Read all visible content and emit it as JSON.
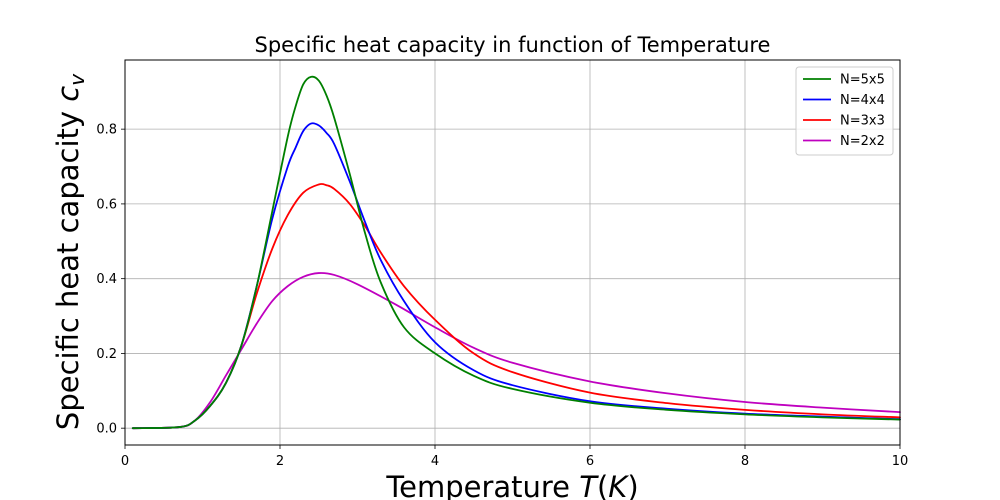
{
  "chart_data": {
    "type": "line",
    "title": "Specific heat capacity in function of Temperature",
    "xlabel": "Temperature T(K)",
    "ylabel": "Specific heat capacity c_v",
    "xlim": [
      0,
      10
    ],
    "ylim": [
      -0.045,
      0.985
    ],
    "x_ticks": [
      0,
      2,
      4,
      6,
      8,
      10
    ],
    "x_tick_labels": [
      "0",
      "2",
      "4",
      "6",
      "8",
      "10"
    ],
    "y_ticks": [
      0.0,
      0.2,
      0.4,
      0.6,
      0.8
    ],
    "y_tick_labels": [
      "0.0",
      "0.2",
      "0.4",
      "0.6",
      "0.8"
    ],
    "grid": true,
    "legend_position": "top-right",
    "series": [
      {
        "name": "N=5x5",
        "color": "#008000",
        "x": [
          0.1,
          0.7,
          0.9,
          1.1,
          1.3,
          1.5,
          1.7,
          1.9,
          2.1,
          2.2,
          2.3,
          2.4,
          2.5,
          2.6,
          2.7,
          2.9,
          3.1,
          3.3,
          3.6,
          4.0,
          4.5,
          5.0,
          6.0,
          7.0,
          8.0,
          9.0,
          10.0
        ],
        "y": [
          0.0,
          0.003,
          0.02,
          0.06,
          0.12,
          0.22,
          0.38,
          0.58,
          0.78,
          0.86,
          0.92,
          0.94,
          0.93,
          0.89,
          0.83,
          0.68,
          0.52,
          0.39,
          0.27,
          0.2,
          0.14,
          0.105,
          0.068,
          0.049,
          0.037,
          0.029,
          0.023
        ]
      },
      {
        "name": "N=4x4",
        "color": "#0000ff",
        "x": [
          0.1,
          0.7,
          0.9,
          1.1,
          1.3,
          1.5,
          1.7,
          1.9,
          2.1,
          2.2,
          2.3,
          2.4,
          2.5,
          2.6,
          2.7,
          2.9,
          3.1,
          3.3,
          3.6,
          4.0,
          4.5,
          5.0,
          6.0,
          7.0,
          8.0,
          9.0,
          10.0
        ],
        "y": [
          0.0,
          0.003,
          0.02,
          0.06,
          0.12,
          0.22,
          0.38,
          0.56,
          0.7,
          0.75,
          0.795,
          0.815,
          0.81,
          0.79,
          0.76,
          0.66,
          0.55,
          0.45,
          0.34,
          0.23,
          0.155,
          0.115,
          0.072,
          0.052,
          0.039,
          0.031,
          0.024
        ]
      },
      {
        "name": "N=3x3",
        "color": "#ff0000",
        "x": [
          0.1,
          0.7,
          0.9,
          1.1,
          1.3,
          1.5,
          1.7,
          1.9,
          2.1,
          2.3,
          2.5,
          2.6,
          2.7,
          2.9,
          3.1,
          3.3,
          3.6,
          4.0,
          4.5,
          5.0,
          6.0,
          7.0,
          8.0,
          9.0,
          10.0
        ],
        "y": [
          0.0,
          0.003,
          0.02,
          0.06,
          0.12,
          0.22,
          0.36,
          0.48,
          0.57,
          0.63,
          0.652,
          0.65,
          0.64,
          0.6,
          0.54,
          0.47,
          0.38,
          0.29,
          0.2,
          0.15,
          0.095,
          0.067,
          0.049,
          0.037,
          0.029
        ]
      },
      {
        "name": "N=2x2",
        "color": "#bf00bf",
        "x": [
          0.1,
          0.7,
          0.9,
          1.1,
          1.3,
          1.5,
          1.7,
          1.9,
          2.1,
          2.3,
          2.5,
          2.7,
          3.0,
          3.5,
          4.0,
          4.5,
          5.0,
          6.0,
          7.0,
          8.0,
          9.0,
          10.0
        ],
        "y": [
          0.0,
          0.003,
          0.02,
          0.07,
          0.14,
          0.21,
          0.28,
          0.34,
          0.38,
          0.405,
          0.415,
          0.41,
          0.385,
          0.33,
          0.27,
          0.215,
          0.175,
          0.125,
          0.093,
          0.07,
          0.055,
          0.043
        ]
      }
    ]
  }
}
